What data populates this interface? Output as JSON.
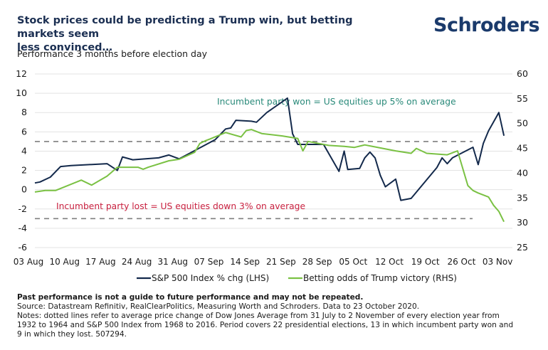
{
  "header": {
    "title_line1": "Stock prices could be predicting a Trump win, but betting markets seem",
    "title_line2": "less convinced…",
    "logo": "Schroders",
    "subtitle": "Performance 3 months before election day"
  },
  "colors": {
    "sp500": "#13294b",
    "betting": "#7ac143",
    "won_annotation": "#2a8a7a",
    "lost_annotation": "#c8203f",
    "dashed": "#7f7f7f",
    "grid": "#e3e3e3",
    "title": "#1b2f52"
  },
  "chart_data": {
    "type": "line",
    "title": "Stock prices could be predicting a Trump win, but betting markets seem less convinced…",
    "subtitle": "Performance 3 months before election day",
    "x_tick_labels": [
      "03 Aug",
      "10 Aug",
      "17 Aug",
      "24 Aug",
      "31 Aug",
      "07 Sep",
      "14 Sep",
      "21 Sep",
      "28 Sep",
      "05 Oct",
      "12 Oct",
      "19 Oct",
      "26 Oct",
      "03 Nov"
    ],
    "x_unit": "days since 03 Aug 2020",
    "x_range": [
      0,
      92
    ],
    "left_axis": {
      "label": "S&P 500 Index % chg (LHS)",
      "range": [
        -6,
        12
      ],
      "ticks": [
        "12",
        "10",
        "8",
        "6",
        "4",
        "2",
        "0",
        "-2",
        "-4",
        "-6"
      ]
    },
    "right_axis": {
      "label": "Betting odds of Trump victory (RHS)",
      "range": [
        25,
        60
      ],
      "ticks": [
        "60",
        "55",
        "50",
        "45",
        "40",
        "35",
        "30",
        "25"
      ]
    },
    "grid": true,
    "legend_position": "bottom",
    "series": [
      {
        "name": "S&P 500 Index % chg (LHS)",
        "axis": "left",
        "x": [
          0,
          1,
          3,
          5,
          7,
          14,
          16,
          17,
          19,
          24,
          26,
          28,
          35,
          37,
          38,
          39,
          42,
          43,
          45,
          49,
          50,
          51,
          52,
          53,
          56,
          59,
          60,
          60.7,
          63,
          64,
          65,
          66,
          67,
          68,
          70,
          71,
          73,
          78,
          79,
          80,
          81,
          85,
          86,
          87,
          88,
          90,
          91
        ],
        "values": [
          0.7,
          0.8,
          1.3,
          2.4,
          2.5,
          2.7,
          2.0,
          3.4,
          3.1,
          3.3,
          3.6,
          3.2,
          5.2,
          6.3,
          6.4,
          7.2,
          7.1,
          7.0,
          8.0,
          9.5,
          5.8,
          4.7,
          4.7,
          4.7,
          4.7,
          1.9,
          4.0,
          2.1,
          2.2,
          3.3,
          3.9,
          3.3,
          1.5,
          0.3,
          1.1,
          -1.1,
          -0.9,
          2.3,
          3.3,
          2.7,
          3.3,
          4.4,
          2.6,
          4.8,
          6.1,
          8.0,
          5.6
        ],
        "color": "#13294b"
      },
      {
        "name": "Betting odds of Trump victory (RHS)",
        "axis": "right",
        "x": [
          0,
          2,
          4,
          9,
          11,
          14,
          16,
          20,
          21,
          22,
          26,
          28,
          31,
          32,
          33,
          34,
          37,
          40,
          41,
          42,
          44,
          48,
          51,
          52,
          53,
          57,
          60,
          62,
          64,
          66,
          70,
          73,
          74,
          76,
          80,
          82,
          84,
          85,
          86,
          88,
          89,
          90,
          91
        ],
        "values": [
          36.2,
          36.5,
          36.5,
          38.6,
          37.6,
          39.4,
          41.2,
          41.2,
          40.8,
          41.2,
          42.5,
          42.8,
          44.2,
          46.0,
          46.5,
          46.9,
          48.2,
          47.3,
          48.6,
          48.8,
          48.0,
          47.5,
          47.0,
          44.5,
          46.4,
          45.6,
          45.4,
          45.2,
          45.7,
          45.3,
          44.5,
          44.0,
          45.0,
          44.0,
          43.7,
          44.5,
          37.5,
          36.5,
          36.0,
          35.2,
          33.5,
          32.3,
          30.2
        ],
        "color": "#7ac143"
      }
    ],
    "reference_lines": [
      {
        "axis": "left",
        "value": 5,
        "style": "dashed",
        "annotation": "Incumbent party won = US equities up 5% on average"
      },
      {
        "axis": "left",
        "value": -3,
        "style": "dashed",
        "annotation": "Incumbent party lost = US equities down 3% on average"
      }
    ]
  },
  "footer": {
    "disclaimer": "Past performance is not a guide to future performance and may not be repeated.",
    "source": "Source: Datastream Refinitiv, RealClearPolitics, Measuring Worth and Schroders. Data to 23 October 2020.",
    "notes_line1": "Notes: dotted lines refer to average price change of Dow Jones Average from 31 July to 2 November of every election year from",
    "notes_line2": "1932 to 1964 and S&P 500 Index from 1968 to 2016. Period covers 22 presidential elections, 13 in which incumbent party won and",
    "notes_line3": "9 in which they lost. 507294."
  }
}
